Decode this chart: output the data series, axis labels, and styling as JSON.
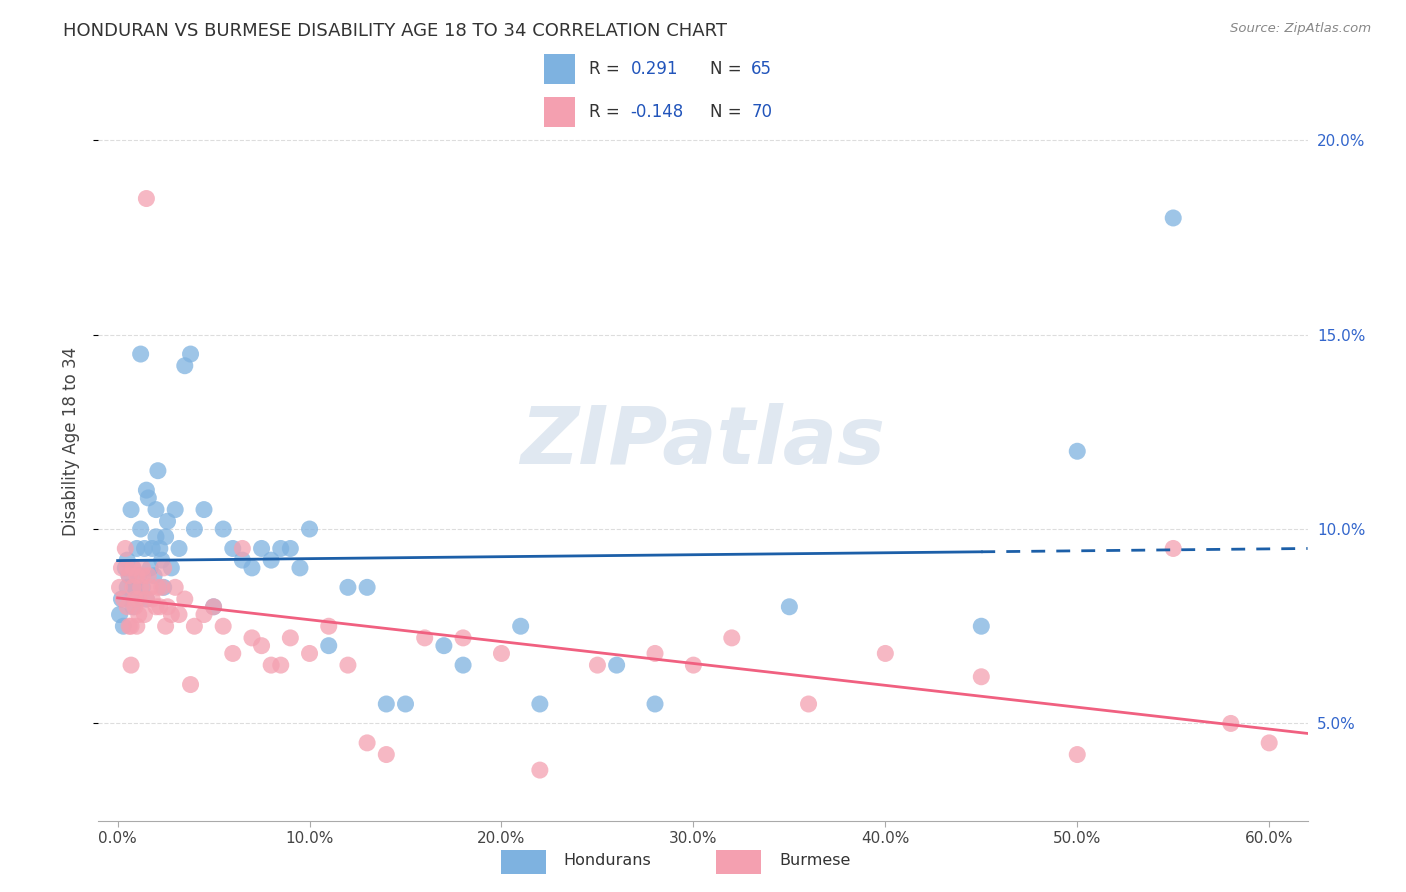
{
  "title": "HONDURAN VS BURMESE DISABILITY AGE 18 TO 34 CORRELATION CHART",
  "source": "Source: ZipAtlas.com",
  "ylabel": "Disability Age 18 to 34",
  "honduran_color": "#7EB2E0",
  "burmese_color": "#F4A0B0",
  "honduran_line_color": "#1C5FA8",
  "burmese_line_color": "#F06080",
  "R_honduran": "0.291",
  "N_honduran": "65",
  "R_burmese": "-0.148",
  "N_burmese": "70",
  "watermark": "ZIPatlas",
  "watermark_color": "#BBCCE0",
  "background_color": "#FFFFFF",
  "grid_color": "#DDDDDD",
  "xlim": [
    -1.0,
    62.0
  ],
  "ylim": [
    2.5,
    22.0
  ],
  "xticks": [
    0,
    10,
    20,
    30,
    40,
    50,
    60
  ],
  "yticks_right": [
    5,
    10,
    15,
    20
  ],
  "honduran_x": [
    0.1,
    0.2,
    0.3,
    0.4,
    0.5,
    0.5,
    0.6,
    0.7,
    0.8,
    0.8,
    0.9,
    1.0,
    1.0,
    1.1,
    1.2,
    1.2,
    1.3,
    1.4,
    1.5,
    1.5,
    1.6,
    1.7,
    1.8,
    1.9,
    2.0,
    2.0,
    2.1,
    2.2,
    2.3,
    2.4,
    2.5,
    2.6,
    2.8,
    3.0,
    3.2,
    3.5,
    3.8,
    4.0,
    4.5,
    5.0,
    5.5,
    6.0,
    6.5,
    7.0,
    7.5,
    8.0,
    9.0,
    10.0,
    11.0,
    12.0,
    14.0,
    17.0,
    21.0,
    26.0,
    35.0,
    45.0,
    55.0,
    8.5,
    9.5,
    13.0,
    15.0,
    18.0,
    22.0,
    28.0,
    50.0
  ],
  "honduran_y": [
    7.8,
    8.2,
    7.5,
    9.0,
    8.5,
    9.2,
    8.8,
    10.5,
    8.0,
    9.0,
    8.5,
    8.2,
    9.5,
    8.8,
    10.0,
    14.5,
    8.5,
    9.5,
    8.2,
    11.0,
    10.8,
    9.0,
    9.5,
    8.8,
    10.5,
    9.8,
    11.5,
    9.5,
    9.2,
    8.5,
    9.8,
    10.2,
    9.0,
    10.5,
    9.5,
    14.2,
    14.5,
    10.0,
    10.5,
    8.0,
    10.0,
    9.5,
    9.2,
    9.0,
    9.5,
    9.2,
    9.5,
    10.0,
    7.0,
    8.5,
    5.5,
    7.0,
    7.5,
    6.5,
    8.0,
    7.5,
    18.0,
    9.5,
    9.0,
    8.5,
    5.5,
    6.5,
    5.5,
    5.5,
    12.0
  ],
  "burmese_x": [
    0.1,
    0.2,
    0.3,
    0.4,
    0.5,
    0.5,
    0.6,
    0.7,
    0.8,
    0.8,
    0.9,
    1.0,
    1.0,
    1.1,
    1.2,
    1.3,
    1.4,
    1.5,
    1.6,
    1.8,
    2.0,
    2.1,
    2.2,
    2.4,
    2.6,
    2.8,
    3.0,
    3.2,
    3.5,
    4.0,
    5.0,
    5.5,
    6.0,
    6.5,
    7.0,
    8.0,
    9.0,
    10.0,
    11.0,
    12.0,
    14.0,
    16.0,
    18.0,
    20.0,
    22.0,
    25.0,
    28.0,
    32.0,
    36.0,
    40.0,
    45.0,
    50.0,
    55.0,
    58.0,
    60.0,
    0.6,
    0.7,
    0.9,
    1.1,
    1.3,
    1.5,
    1.7,
    2.3,
    2.5,
    3.8,
    7.5,
    13.0,
    4.5,
    8.5,
    30.0
  ],
  "burmese_y": [
    8.5,
    9.0,
    8.2,
    9.5,
    8.0,
    9.0,
    8.8,
    7.5,
    9.0,
    8.5,
    8.2,
    8.8,
    7.5,
    8.2,
    8.5,
    8.8,
    7.8,
    18.5,
    8.8,
    8.2,
    8.0,
    8.5,
    8.0,
    9.0,
    8.0,
    7.8,
    8.5,
    7.8,
    8.2,
    7.5,
    8.0,
    7.5,
    6.8,
    9.5,
    7.2,
    6.5,
    7.2,
    6.8,
    7.5,
    6.5,
    4.2,
    7.2,
    7.2,
    6.8,
    3.8,
    6.5,
    6.8,
    7.2,
    5.5,
    6.8,
    6.2,
    4.2,
    9.5,
    5.0,
    4.5,
    7.5,
    6.5,
    8.0,
    7.8,
    9.0,
    8.2,
    8.5,
    8.5,
    7.5,
    6.0,
    7.0,
    4.5,
    7.8,
    6.5,
    6.5
  ]
}
